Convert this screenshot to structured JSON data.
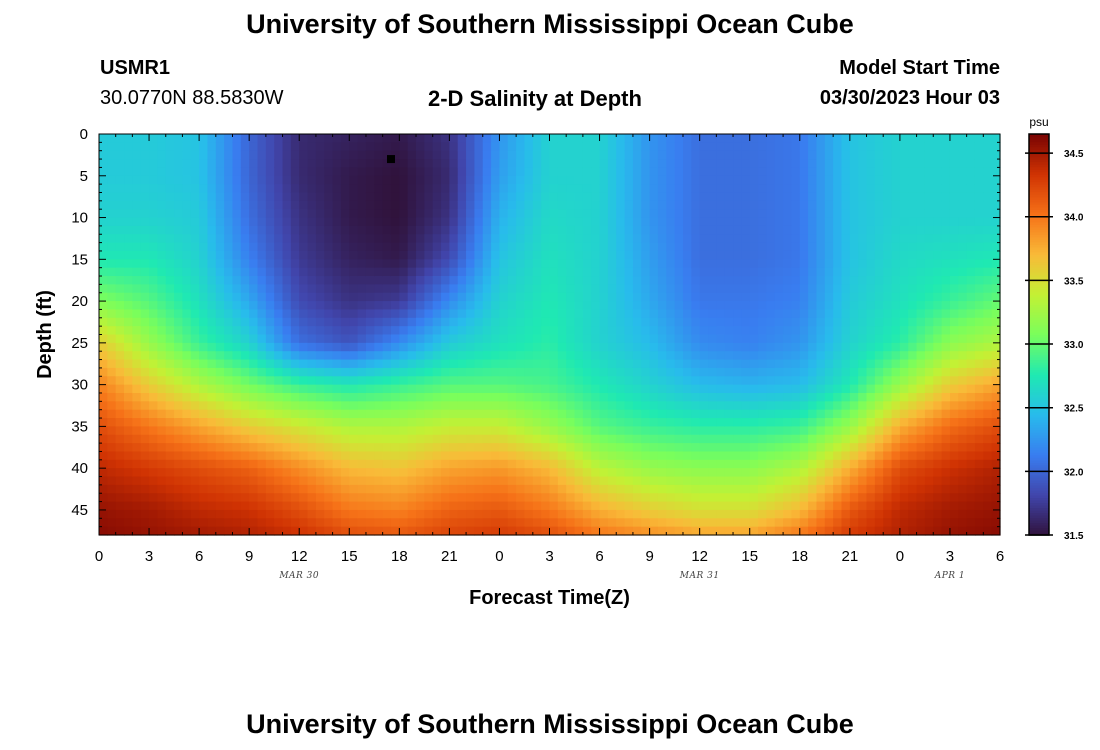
{
  "page": {
    "title_top": "University of Southern Mississippi Ocean Cube",
    "title_bottom": "University of Southern Mississippi Ocean Cube",
    "station_id": "USMR1",
    "coordinates": "30.0770N  88.5830W",
    "plot_title": "2-D Salinity at Depth",
    "model_start_label": "Model Start Time",
    "model_start_value": "03/30/2023 Hour 03",
    "colors": {
      "marker": "#000000",
      "axis": "#000000"
    }
  },
  "chart_data": {
    "type": "heatmap",
    "title": "2-D Salinity at Depth",
    "xlabel": "Forecast Time(Z)",
    "ylabel": "Depth (ft)",
    "x_unit": "hour (UTC)",
    "x_start": "03/30/2023 Hour 00",
    "x_ticks": [
      "0",
      "3",
      "6",
      "9",
      "12",
      "15",
      "18",
      "21",
      "0",
      "3",
      "6",
      "9",
      "12",
      "15",
      "18",
      "21",
      "0",
      "3",
      "6"
    ],
    "x_range_hours": [
      0,
      54
    ],
    "date_labels": [
      {
        "text": "MAR 30",
        "hour": 12
      },
      {
        "text": "MAR 31",
        "hour": 36
      },
      {
        "text": "APR 1",
        "hour": 51
      }
    ],
    "y_ticks": [
      0,
      5,
      10,
      15,
      20,
      25,
      30,
      35,
      40,
      45
    ],
    "ylim": [
      0,
      48
    ],
    "y_inverted": true,
    "colorbar": {
      "unit": "psu",
      "range": [
        31.5,
        34.65
      ],
      "ticks": [
        "31.5",
        "32.0",
        "32.5",
        "33.0",
        "33.5",
        "34.0",
        "34.5"
      ]
    },
    "marker": {
      "hour": 17.5,
      "depth": 3
    },
    "profile_hours": [
      0,
      3,
      6,
      9,
      12,
      15,
      18,
      21,
      24,
      27,
      30,
      33,
      36,
      39,
      42,
      45,
      48,
      51,
      54
    ],
    "profile_depths": [
      0,
      5,
      10,
      15,
      20,
      25,
      30,
      35,
      40,
      45,
      48
    ],
    "salinity_psu": [
      [
        32.55,
        32.55,
        32.6,
        32.75,
        33.1,
        33.6,
        33.95,
        34.2,
        34.4,
        34.55,
        34.6
      ],
      [
        32.55,
        32.55,
        32.6,
        32.75,
        32.95,
        33.2,
        33.6,
        34.0,
        34.3,
        34.5,
        34.55
      ],
      [
        32.5,
        32.5,
        32.55,
        32.6,
        32.7,
        32.85,
        33.3,
        33.8,
        34.2,
        34.4,
        34.5
      ],
      [
        32.0,
        32.0,
        32.05,
        32.15,
        32.35,
        32.6,
        33.05,
        33.6,
        34.1,
        34.35,
        34.45
      ],
      [
        31.65,
        31.65,
        31.7,
        31.75,
        31.85,
        32.05,
        32.85,
        33.45,
        33.9,
        34.2,
        34.35
      ],
      [
        31.6,
        31.55,
        31.55,
        31.6,
        31.7,
        31.9,
        32.75,
        33.3,
        33.7,
        34.0,
        34.2
      ],
      [
        31.55,
        31.5,
        31.5,
        31.55,
        31.75,
        32.2,
        32.85,
        33.3,
        33.65,
        33.95,
        34.15
      ],
      [
        31.7,
        31.65,
        31.7,
        31.85,
        32.2,
        32.55,
        32.95,
        33.4,
        33.8,
        34.1,
        34.25
      ],
      [
        32.25,
        32.3,
        32.4,
        32.5,
        32.6,
        32.7,
        32.95,
        33.4,
        33.85,
        34.15,
        34.3
      ],
      [
        32.6,
        32.6,
        32.65,
        32.7,
        32.75,
        32.8,
        32.9,
        33.2,
        33.7,
        34.0,
        34.2
      ],
      [
        32.6,
        32.6,
        32.6,
        32.6,
        32.6,
        32.6,
        32.75,
        32.95,
        33.35,
        33.75,
        34.0
      ],
      [
        32.25,
        32.25,
        32.25,
        32.3,
        32.35,
        32.45,
        32.6,
        32.85,
        33.2,
        33.6,
        33.9
      ],
      [
        32.05,
        32.05,
        32.05,
        32.05,
        32.1,
        32.2,
        32.45,
        32.8,
        33.15,
        33.5,
        33.8
      ],
      [
        32.05,
        32.05,
        32.05,
        32.05,
        32.1,
        32.15,
        32.4,
        32.8,
        33.15,
        33.5,
        33.8
      ],
      [
        32.1,
        32.1,
        32.1,
        32.1,
        32.15,
        32.25,
        32.45,
        32.85,
        33.3,
        33.7,
        34.0
      ],
      [
        32.5,
        32.5,
        32.5,
        32.5,
        32.55,
        32.6,
        32.75,
        33.2,
        33.75,
        34.15,
        34.3
      ],
      [
        32.6,
        32.6,
        32.6,
        32.65,
        32.7,
        32.8,
        33.2,
        33.75,
        34.2,
        34.4,
        34.45
      ],
      [
        32.6,
        32.6,
        32.6,
        32.7,
        32.85,
        33.15,
        33.6,
        34.05,
        34.35,
        34.5,
        34.55
      ],
      [
        32.6,
        32.6,
        32.6,
        32.75,
        33.0,
        33.3,
        33.8,
        34.2,
        34.45,
        34.55,
        34.6
      ]
    ]
  }
}
